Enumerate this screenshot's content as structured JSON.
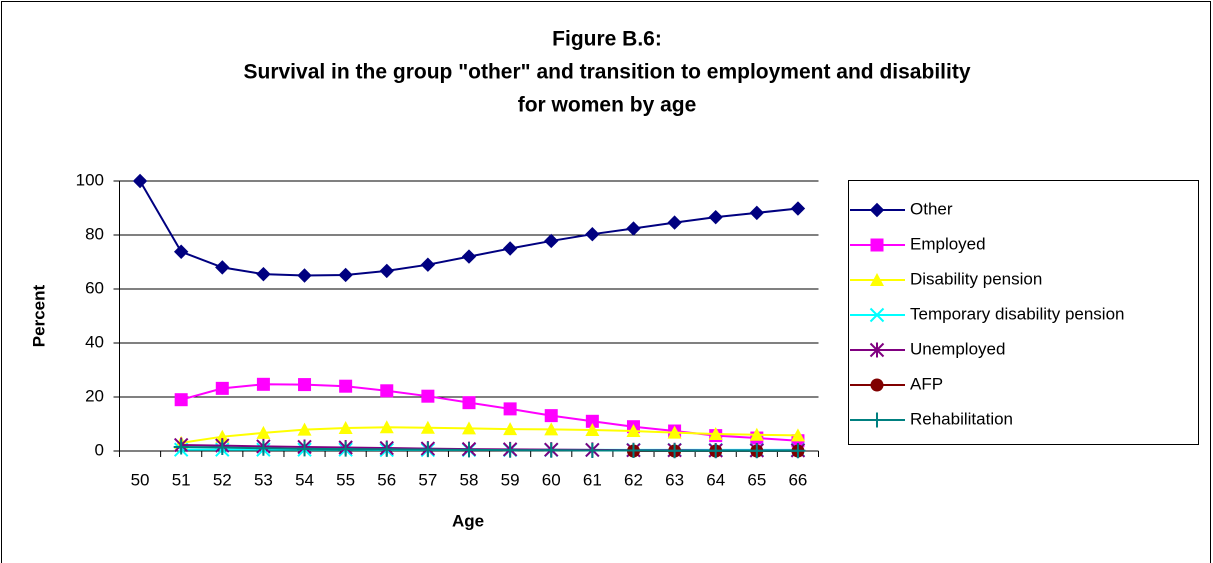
{
  "chart_data": {
    "type": "line",
    "title": [
      "Figure B.6:",
      "Survival in the group \"other\" and transition to employment and disability",
      "for women by age"
    ],
    "x_label": "Age",
    "y_label": "Percent",
    "categories": [
      50,
      51,
      52,
      53,
      54,
      55,
      56,
      57,
      58,
      59,
      60,
      61,
      62,
      63,
      64,
      65,
      66
    ],
    "ylim": [
      0,
      100
    ],
    "yticks": [
      0,
      20,
      40,
      60,
      80,
      100
    ],
    "grid": true,
    "legend": "right",
    "series": [
      {
        "name": "Other",
        "color": "#000080",
        "marker": "diamond",
        "values": [
          100,
          73.8,
          68,
          65.5,
          65,
          65.2,
          66.7,
          69,
          72,
          75,
          77.8,
          80.3,
          82.4,
          84.6,
          86.6,
          88.2,
          89.8
        ]
      },
      {
        "name": "Employed",
        "color": "#ff00ff",
        "marker": "square",
        "values": [
          null,
          19,
          23.2,
          24.7,
          24.6,
          24,
          22.3,
          20.3,
          17.9,
          15.6,
          13.1,
          11,
          9,
          7.4,
          5.7,
          4.8,
          3.8
        ]
      },
      {
        "name": "Disability pension",
        "color": "#ffff00",
        "marker": "triangle",
        "values": [
          null,
          3,
          5.3,
          6.7,
          7.9,
          8.5,
          8.8,
          8.6,
          8.4,
          8.1,
          8,
          7.8,
          7.4,
          6.8,
          6.3,
          6,
          5.8
        ]
      },
      {
        "name": "Temporary disability pension",
        "color": "#00ffff",
        "marker": "x",
        "values": [
          null,
          0.5,
          0.5,
          0.5,
          0.5,
          0.5,
          0.4,
          0.4,
          0.4,
          0.4,
          0.4,
          0.4,
          0.4,
          0.4,
          0.4,
          0.4,
          0.4
        ]
      },
      {
        "name": "Unemployed",
        "color": "#800080",
        "marker": "asterisk",
        "values": [
          null,
          2.2,
          2,
          1.7,
          1.5,
          1.3,
          1.1,
          0.9,
          0.7,
          0.6,
          0.5,
          0.4,
          0.3,
          0.3,
          0.2,
          0.2,
          0.2
        ]
      },
      {
        "name": "AFP",
        "color": "#800000",
        "marker": "circle",
        "values": [
          null,
          null,
          null,
          null,
          null,
          null,
          null,
          null,
          null,
          null,
          null,
          null,
          0,
          0,
          0,
          0,
          0
        ]
      },
      {
        "name": "Rehabilitation",
        "color": "#008080",
        "marker": "plus",
        "values": [
          null,
          1.5,
          1.3,
          1,
          0.8,
          0.7,
          0.6,
          0.5,
          0.4,
          0.3,
          0.3,
          0.2,
          0.2,
          0.1,
          0.1,
          0.1,
          0.1
        ]
      }
    ]
  }
}
